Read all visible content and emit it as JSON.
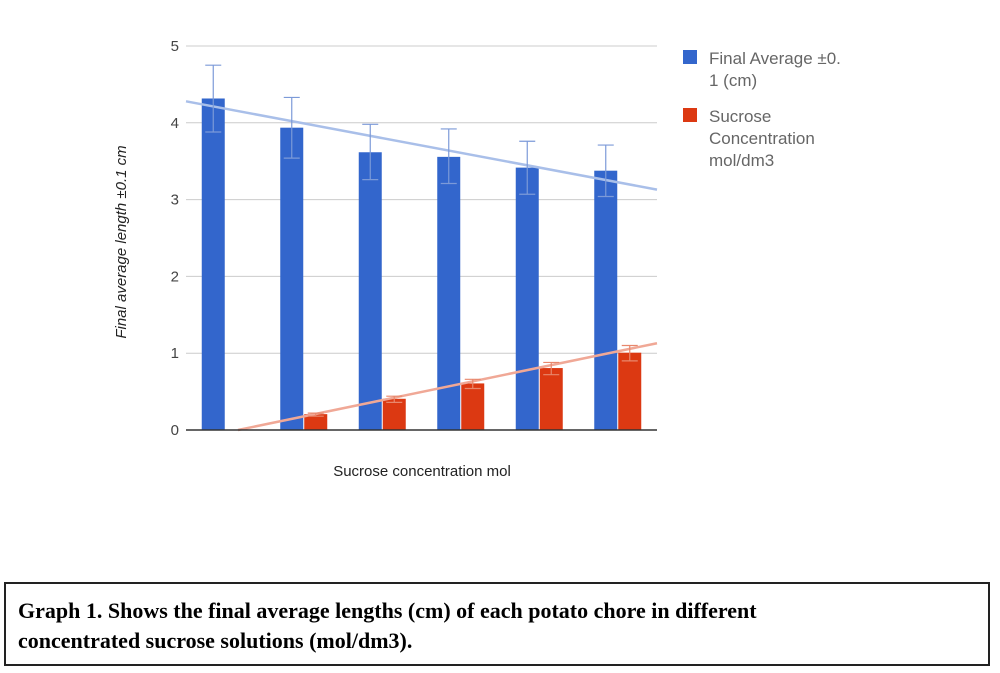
{
  "chart_data": {
    "type": "bar",
    "categories": [
      "",
      "",
      "",
      "",
      "",
      ""
    ],
    "xlabel": "Sucrose concentration mol",
    "ylabel": "Final average length ±0.1 cm",
    "ylim": [
      0,
      5
    ],
    "yticks": [
      "0",
      "1",
      "2",
      "3",
      "4",
      "5"
    ],
    "grid": true,
    "legend_position": "right",
    "series": [
      {
        "name_lines": [
          "Final Average ±0.",
          "1 (cm)"
        ],
        "color": "#3366cc",
        "trendline_color": "#a9bfe9",
        "values": [
          4.31,
          3.93,
          3.61,
          3.55,
          3.41,
          3.37
        ],
        "error_low": [
          3.88,
          3.54,
          3.26,
          3.21,
          3.07,
          3.04
        ],
        "error_high": [
          4.75,
          4.33,
          3.98,
          3.92,
          3.76,
          3.71
        ],
        "trendline": [
          4.28,
          3.13
        ]
      },
      {
        "name_lines": [
          "Sucrose",
          "Concentration",
          "mol/dm3"
        ],
        "color": "#dc3912",
        "trendline_color": "#f0a896",
        "values": [
          0,
          0.2,
          0.4,
          0.6,
          0.8,
          1.0
        ],
        "error_low": [
          0,
          0.18,
          0.36,
          0.54,
          0.72,
          0.9
        ],
        "error_high": [
          0,
          0.22,
          0.44,
          0.66,
          0.88,
          1.1
        ],
        "trendline": [
          0,
          1.13
        ]
      }
    ]
  },
  "caption": {
    "line1": "Graph 1. Shows the final average lengths (cm) of each potato chore in different",
    "line2": "concentrated sucrose solutions (mol/dm3)."
  }
}
